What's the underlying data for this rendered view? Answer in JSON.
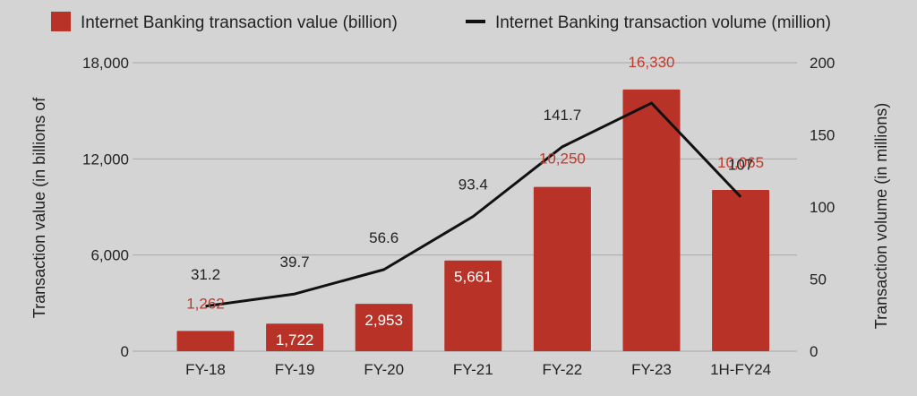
{
  "chart_data": {
    "type": "bar+line",
    "categories": [
      "FY-18",
      "FY-19",
      "FY-20",
      "FY-21",
      "FY-22",
      "FY-23",
      "1H-FY24"
    ],
    "series": [
      {
        "name": "Internet Banking transaction  value (billion)",
        "type": "bar",
        "axis": "left",
        "color": "#b83227",
        "values": [
          1262,
          1722,
          2953,
          5661,
          10250,
          16330,
          10065
        ],
        "labels": [
          "1,262",
          "1,722",
          "2,953",
          "5,661",
          "10,250",
          "16,330",
          "10,065"
        ]
      },
      {
        "name": "Internet Banking transaction volume (million)",
        "type": "line",
        "axis": "right",
        "color": "#111111",
        "values": [
          31.2,
          39.7,
          56.6,
          93.4,
          141.7,
          172,
          107
        ],
        "labels": [
          "31.2",
          "39.7",
          "56.6",
          "93.4",
          "141.7",
          "",
          "107"
        ]
      }
    ],
    "y_left": {
      "label": "Transaction value (in billions of",
      "range": [
        0,
        18000
      ],
      "ticks": [
        0,
        6000,
        12000,
        18000
      ],
      "tick_labels": [
        "0",
        "6,000",
        "12,000",
        "18,000"
      ]
    },
    "y_right": {
      "label": "Transaction volume (in millions)",
      "range": [
        0,
        200
      ],
      "ticks": [
        0,
        50,
        100,
        150,
        200
      ],
      "tick_labels": [
        "0",
        "50",
        "100",
        "150",
        "200"
      ]
    },
    "grid": true,
    "legend": "top"
  }
}
